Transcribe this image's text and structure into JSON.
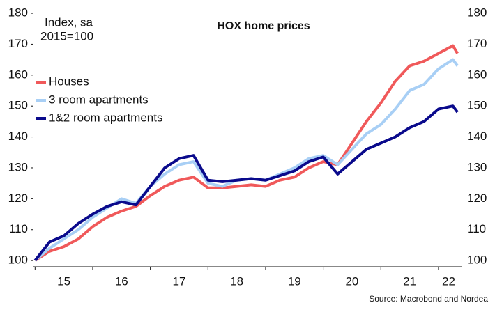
{
  "chart_data": {
    "type": "line",
    "title": "HOX home prices",
    "ylabel": "Index, sa",
    "ylabel_note": "2015=100",
    "source": "Source: Macrobond and Nordea",
    "x": [
      15.0,
      15.25,
      15.5,
      15.75,
      16.0,
      16.25,
      16.5,
      16.75,
      17.0,
      17.25,
      17.5,
      17.75,
      18.0,
      18.25,
      18.5,
      18.75,
      19.0,
      19.25,
      19.5,
      19.75,
      20.0,
      20.25,
      20.5,
      20.75,
      21.0,
      21.25,
      21.5,
      21.75,
      22.0,
      22.25,
      22.33
    ],
    "series": [
      {
        "name": "Houses",
        "color": "#f0595a",
        "values": [
          100,
          103,
          104.5,
          107,
          111,
          114,
          116,
          117.5,
          121,
          124,
          126,
          127,
          123.5,
          123.5,
          124,
          124.5,
          124,
          126,
          127,
          130,
          132,
          131,
          138,
          145,
          151,
          158,
          163,
          164.5,
          167,
          169.5,
          167
        ]
      },
      {
        "name": "3 room apartments",
        "color": "#a8cff5",
        "values": [
          100,
          104,
          107,
          110,
          114,
          117,
          120,
          118.5,
          124,
          128,
          131,
          132,
          125,
          124,
          126,
          126.5,
          126,
          128,
          130,
          133,
          134,
          131,
          136,
          141,
          144,
          149,
          155,
          157,
          162,
          165,
          163
        ]
      },
      {
        "name": "1&2 room apartments",
        "color": "#0a0a8c",
        "values": [
          100,
          106,
          108,
          112,
          115,
          117.5,
          119,
          118,
          124,
          130,
          133,
          134,
          126,
          125.5,
          126,
          126.5,
          126,
          127.5,
          129,
          132,
          133.5,
          128,
          132,
          136,
          138,
          140,
          143,
          145,
          149,
          150,
          148
        ]
      }
    ],
    "xlim": [
      14.96,
      22.4
    ],
    "xticks": [
      {
        "value": 15,
        "label": "15"
      },
      {
        "value": 16,
        "label": "16"
      },
      {
        "value": 17,
        "label": "17"
      },
      {
        "value": 18,
        "label": "18"
      },
      {
        "value": 19,
        "label": "19"
      },
      {
        "value": 20,
        "label": "20"
      },
      {
        "value": 21,
        "label": "21"
      },
      {
        "value": 22,
        "label": "22"
      }
    ],
    "ylim": [
      98,
      181
    ],
    "yticks": [
      100,
      110,
      120,
      130,
      140,
      150,
      160,
      170,
      180
    ],
    "y2lim": [
      98,
      181
    ],
    "y2ticks": [
      100,
      110,
      120,
      130,
      140,
      150,
      160,
      170,
      180
    ],
    "legend": "top-left",
    "grid": false
  }
}
